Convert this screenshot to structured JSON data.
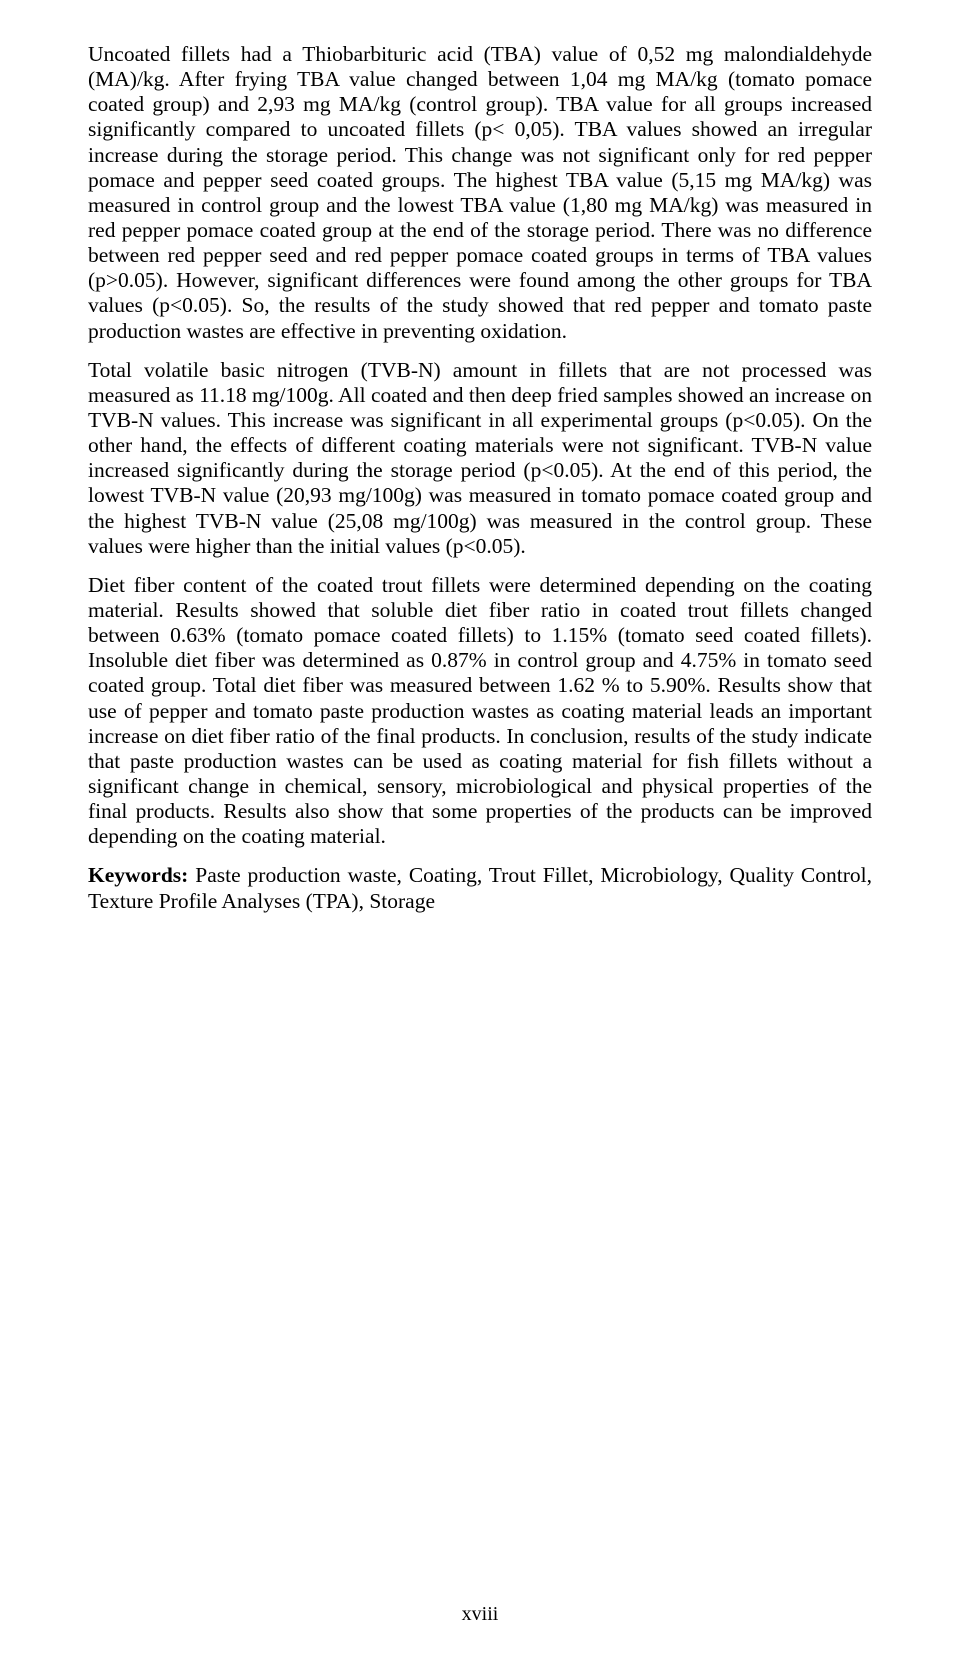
{
  "paragraphs": {
    "p1": "Uncoated fillets had a Thiobarbituric acid (TBA) value of 0,52 mg malondialdehyde (MA)/kg. After frying TBA value changed between 1,04 mg MA/kg (tomato pomace coated group) and 2,93 mg MA/kg (control group). TBA value for all groups increased significantly compared to uncoated fillets (p< 0,05). TBA values showed an irregular increase during the storage period. This change was not significant only for red pepper pomace and pepper seed coated groups. The highest TBA value (5,15 mg MA/kg) was measured in control group and the lowest TBA value (1,80 mg MA/kg) was measured in red pepper pomace coated group at the end of the storage period. There was no difference between red pepper seed and red pepper pomace coated groups in terms of TBA values (p>0.05). However, significant differences were found among the other groups for TBA values (p<0.05). So, the results of the study showed that red pepper and tomato paste production wastes are effective in preventing oxidation.",
    "p2": "Total volatile basic nitrogen (TVB-N) amount in fillets that are not processed was measured as 11.18 mg/100g. All coated and then deep fried samples showed an increase on TVB-N values. This increase was significant in all experimental groups (p<0.05). On the other hand, the effects of different coating materials were not significant. TVB-N value increased significantly during the storage period (p<0.05). At the end of this period, the lowest TVB-N value (20,93 mg/100g) was measured in tomato pomace  coated group and the highest TVB-N value (25,08 mg/100g) was measured in the control group. These values were higher than the initial values (p<0.05).",
    "p3": "Diet fiber content of the coated trout fillets were determined depending on the coating material. Results showed that soluble diet fiber ratio in coated trout fillets changed between 0.63% (tomato pomace coated fillets) to 1.15% (tomato seed coated fillets). Insoluble diet fiber was determined as 0.87% in control group and 4.75% in tomato seed coated group. Total diet fiber was measured between 1.62 % to 5.90%. Results show that use of pepper and tomato paste production wastes as coating material leads an important increase on diet fiber ratio of the final products. In conclusion, results of the study indicate that paste production wastes can be used as coating material for fish fillets without a significant change in chemical, sensory, microbiological and physical properties of the final products. Results also show that some properties of the products can be improved depending on the coating material."
  },
  "keywords": {
    "label": "Keywords:",
    "text": " Paste production waste, Coating, Trout Fillet, Microbiology, Quality Control, Texture Profile Analyses (TPA), Storage"
  },
  "page_number": "xviii"
}
